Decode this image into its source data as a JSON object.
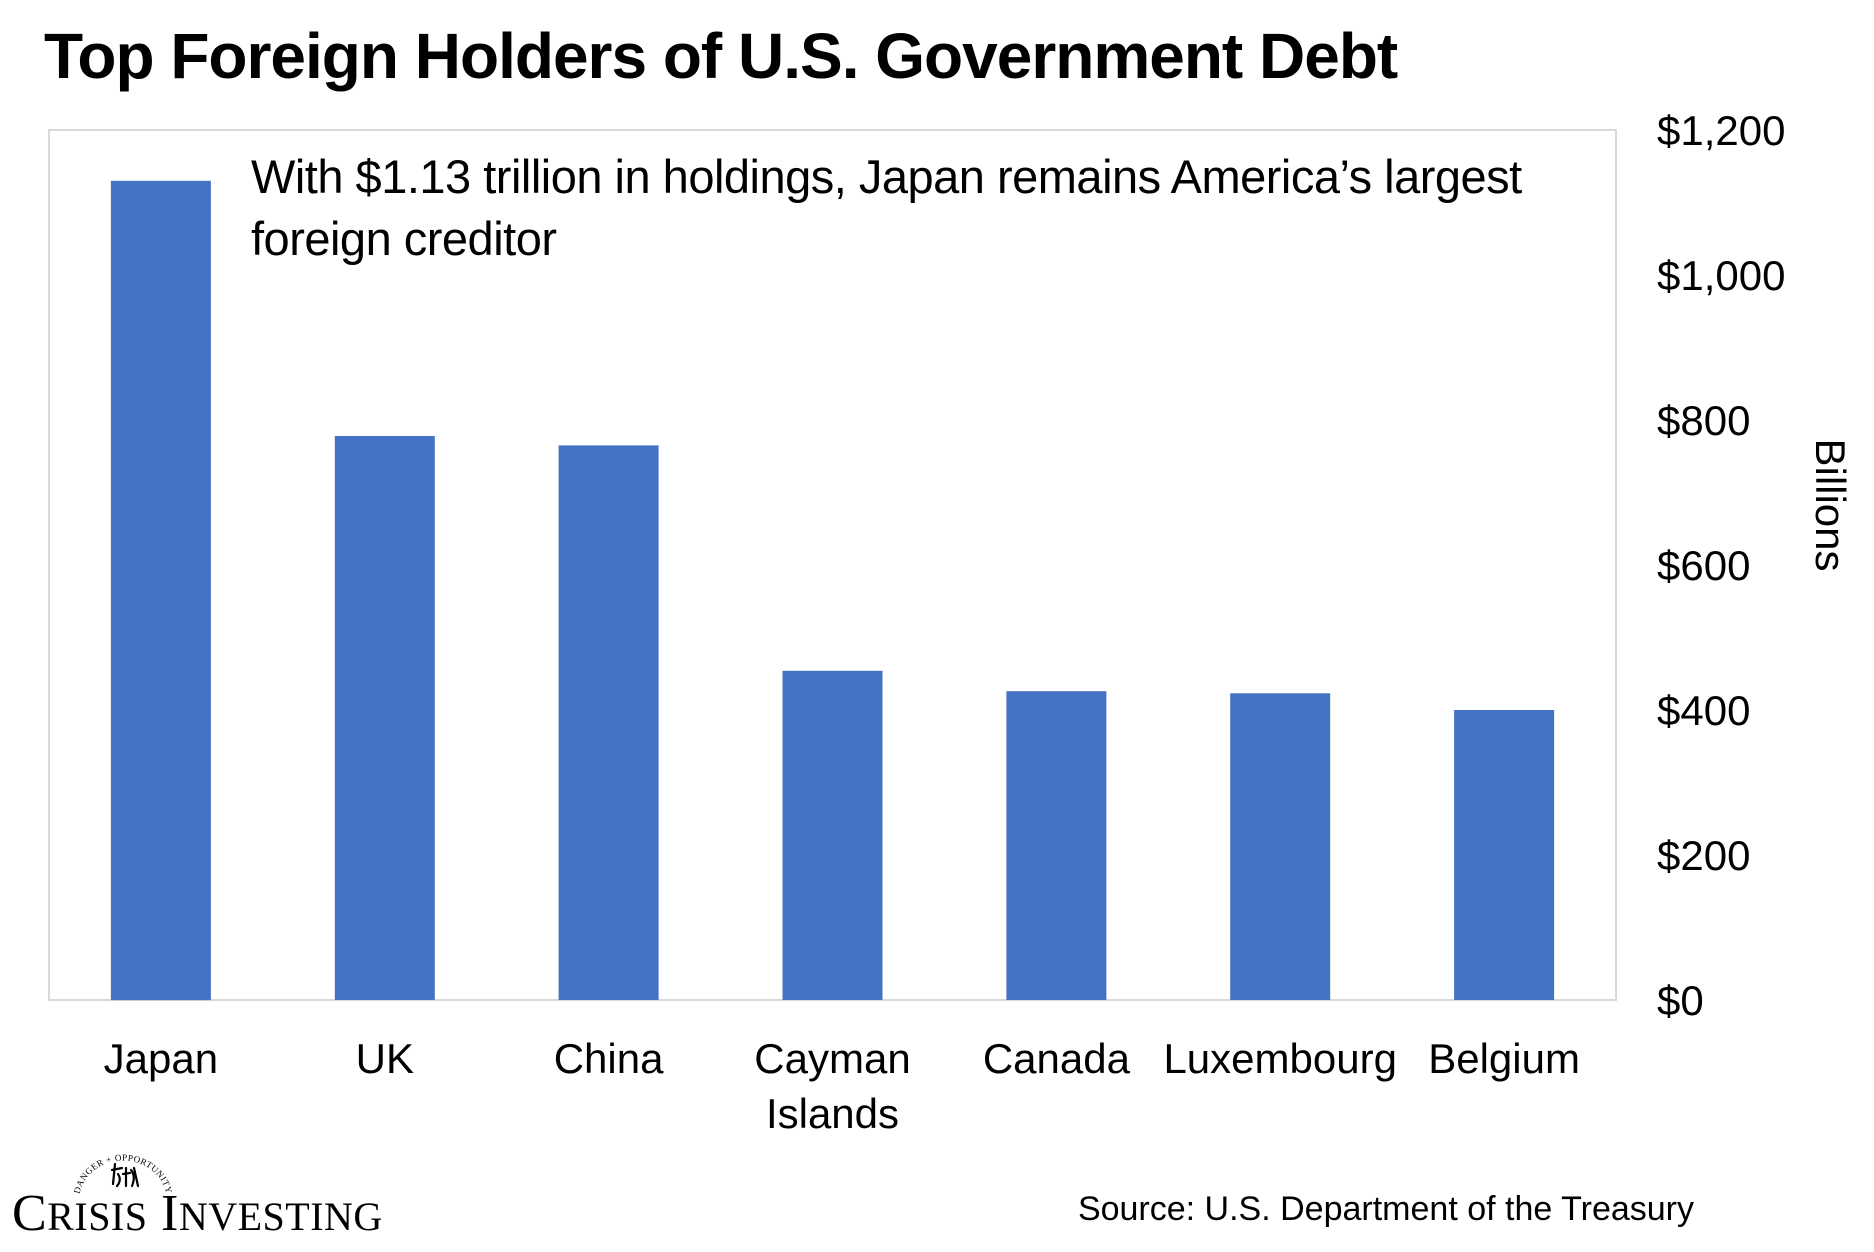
{
  "title": "Top Foreign Holders of U.S. Government Debt",
  "annotation": "With $1.13 trillion in holdings, Japan remains America’s largest foreign creditor",
  "source": "Source: U.S. Department of the Treasury",
  "logo": {
    "name": "Crisis Investing",
    "seal_text": "DANGER + OPPORTUNITY"
  },
  "colors": {
    "bar": "#4472C4",
    "text": "#000000",
    "frame": "#D9D9D9"
  },
  "chart_data": {
    "type": "bar",
    "categories": [
      "Japan",
      "UK",
      "China",
      "Cayman Islands",
      "Canada",
      "Luxembourg",
      "Belgium"
    ],
    "category_label_lines": [
      [
        "Japan"
      ],
      [
        "UK"
      ],
      [
        "China"
      ],
      [
        "Cayman",
        "Islands"
      ],
      [
        "Canada"
      ],
      [
        "Luxembourg"
      ],
      [
        "Belgium"
      ]
    ],
    "values": [
      1130,
      778,
      765,
      454,
      426,
      423,
      400
    ],
    "ylabel": "Billions",
    "ylim": [
      0,
      1200
    ],
    "yticks": [
      0,
      200,
      400,
      600,
      800,
      1000,
      1200
    ],
    "ytick_labels": [
      "$0",
      "$200",
      "$400",
      "$600",
      "$800",
      "$1,000",
      "$1,200"
    ],
    "y_axis_side": "right",
    "grid": false,
    "legend": "none"
  }
}
